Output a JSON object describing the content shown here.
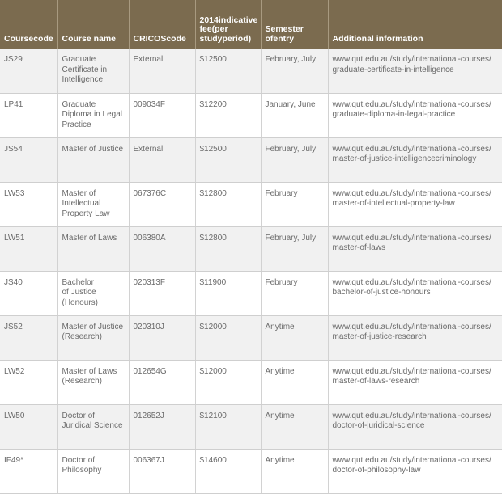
{
  "table": {
    "headers": [
      "Course\ncode",
      "Course name",
      "CRICOS\ncode",
      "2014\nindicative fee\n(per study\nperiod)",
      "Semester of\nentry",
      "Additional information"
    ],
    "rows": [
      [
        "JS29",
        "Graduate\nCertificate in\nIntelligence",
        "External",
        "$12500",
        "February, July",
        "www.qut.edu.au/study/international-courses/\ngraduate-certificate-in-intelligence"
      ],
      [
        "LP41",
        "Graduate\nDiploma in Legal\nPractice",
        "009034F",
        "$12200",
        "January, June",
        "www.qut.edu.au/study/international-courses/\ngraduate-diploma-in-legal-practice"
      ],
      [
        "JS54",
        "Master of Justice",
        "External",
        "$12500",
        "February, July",
        "www.qut.edu.au/study/international-courses/\nmaster-of-justice-intelligencecriminology"
      ],
      [
        "LW53",
        "Master of\nIntellectual\nProperty Law",
        "067376C",
        "$12800",
        "February",
        "www.qut.edu.au/study/international-courses/\nmaster-of-intellectual-property-law"
      ],
      [
        "LW51",
        "Master of Laws",
        "006380A",
        "$12800",
        "February, July",
        "www.qut.edu.au/study/international-courses/\nmaster-of-laws"
      ],
      [
        "JS40",
        "Bachelor\nof Justice\n(Honours)",
        "020313F",
        "$11900",
        "February",
        "www.qut.edu.au/study/international-courses/\nbachelor-of-justice-honours"
      ],
      [
        "JS52",
        "Master of Justice\n(Research)",
        "020310J",
        "$12000",
        "Anytime",
        "www.qut.edu.au/study/international-courses/\nmaster-of-justice-research"
      ],
      [
        "LW52",
        "Master of Laws\n(Research)",
        "012654G",
        "$12000",
        "Anytime",
        "www.qut.edu.au/study/international-courses/\nmaster-of-laws-research"
      ],
      [
        "LW50",
        "Doctor of\nJuridical Science",
        "012652J",
        "$12100",
        "Anytime",
        "www.qut.edu.au/study/international-courses/\ndoctor-of-juridical-science"
      ],
      [
        "IF49*",
        "Doctor of\nPhilosophy",
        "006367J",
        "$14600",
        "Anytime",
        "www.qut.edu.au/study/international-courses/\ndoctor-of-philosophy-law"
      ]
    ]
  },
  "colors": {
    "header_bg": "#7b6b4f",
    "header_text": "#ffffff",
    "row_alt_bg": "#f1f1f1",
    "cell_text": "#6a6a6a"
  }
}
